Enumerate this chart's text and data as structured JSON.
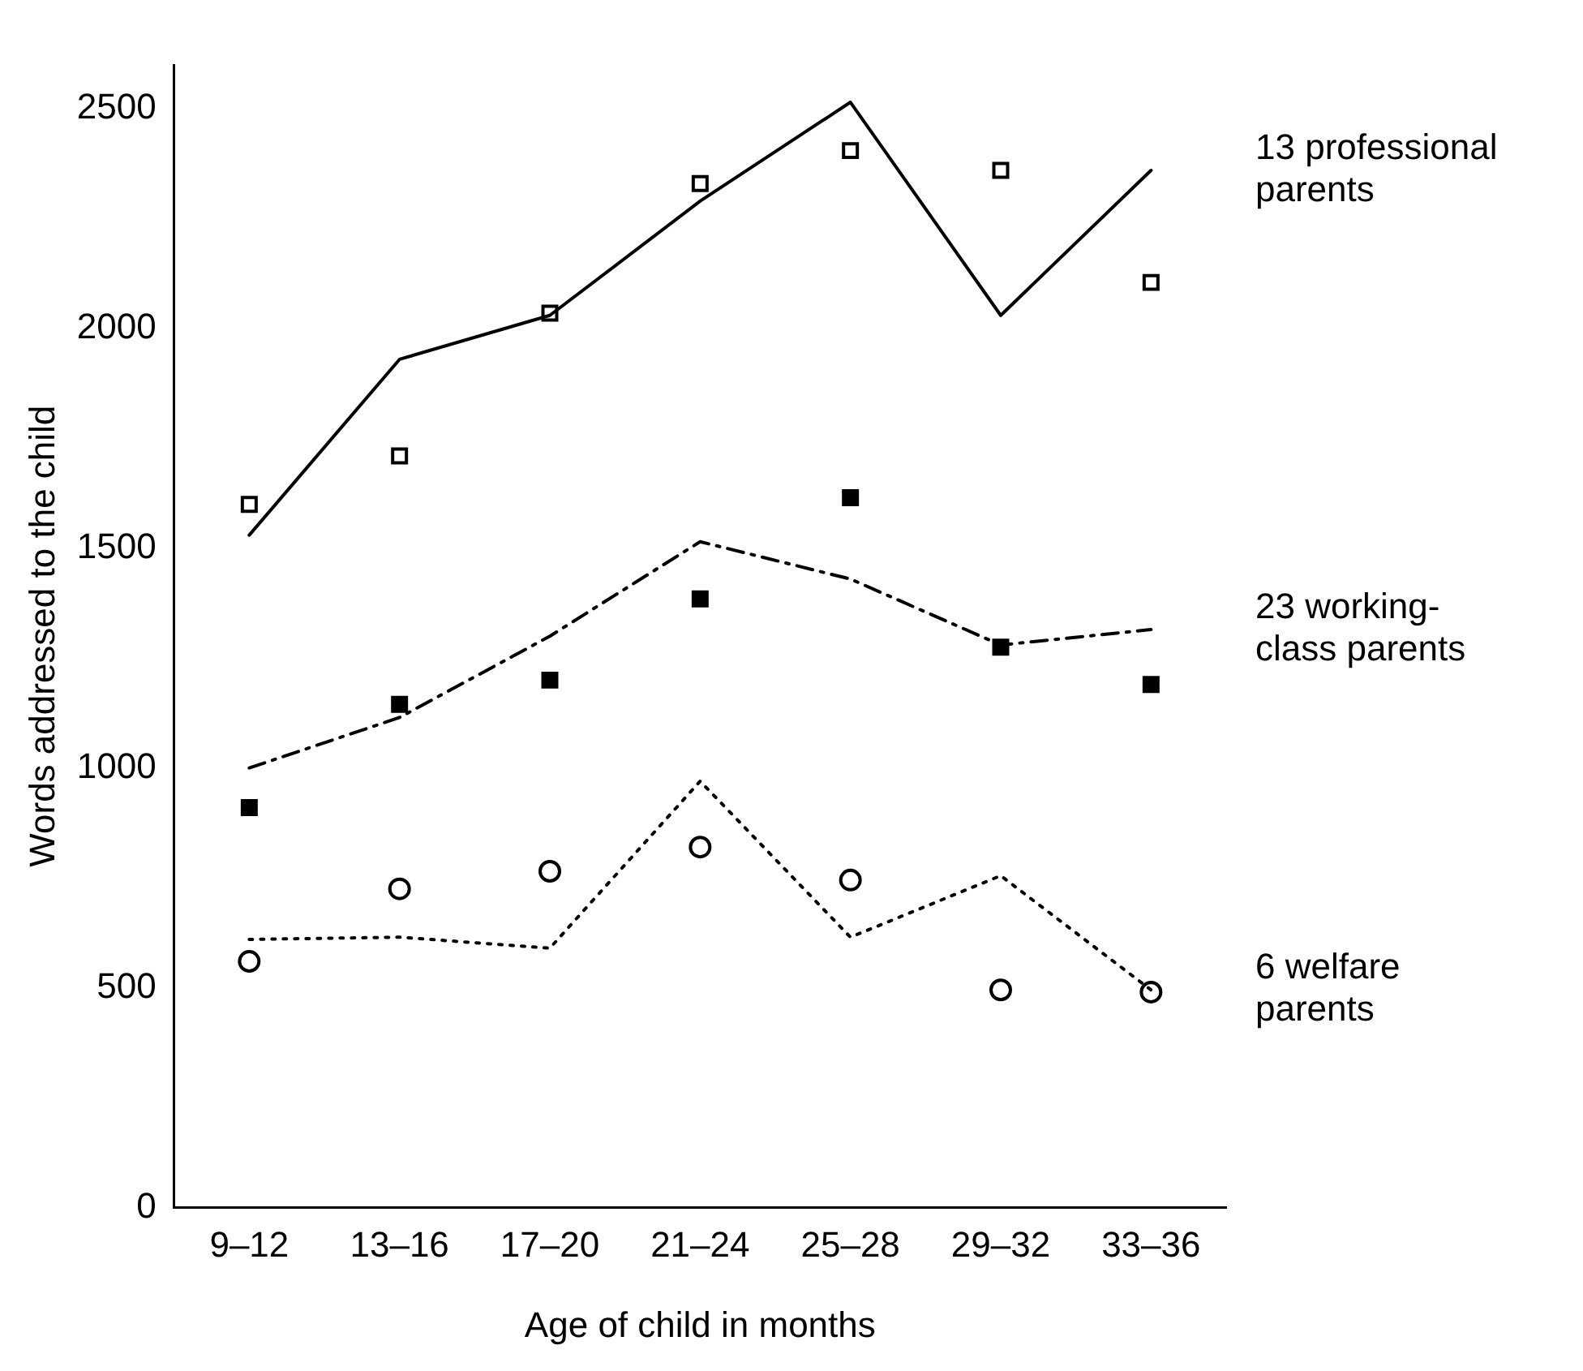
{
  "chart_data": {
    "type": "line",
    "xlabel": "Age of child in months",
    "ylabel": "Words addressed to the child",
    "categories": [
      "9–12",
      "13–16",
      "17–20",
      "21–24",
      "25–28",
      "29–32",
      "33–36"
    ],
    "ylim": [
      0,
      2600
    ],
    "yticks": [
      0,
      500,
      1000,
      1500,
      2000,
      2500
    ],
    "grid": false,
    "legend": false,
    "series": [
      {
        "name": "13 professional parents",
        "color": "#000000",
        "line_style": "solid",
        "marker": "none",
        "values": [
          1530,
          1930,
          2030,
          2290,
          2515,
          2030,
          2360
        ]
      },
      {
        "type": "scatter",
        "color": "#ffffff",
        "marker": "square",
        "values": [
          1600,
          1710,
          2035,
          2330,
          2405,
          2360,
          2105
        ]
      },
      {
        "name": "23 working-class parents",
        "color": "#000000",
        "line_style": "dashed",
        "marker": "none",
        "values": [
          1000,
          1115,
          1300,
          1515,
          1430,
          1280,
          1315
        ]
      },
      {
        "type": "scatter",
        "color": "#000000",
        "marker": "square",
        "values": [
          910,
          1145,
          1200,
          1385,
          1615,
          1275,
          1190
        ]
      },
      {
        "name": "6 welfare parents",
        "color": "#000000",
        "line_style": "dotted",
        "marker": "none",
        "values": [
          610,
          615,
          590,
          970,
          615,
          755,
          495
        ]
      },
      {
        "type": "scatter",
        "color": "#ffffff",
        "marker": "circle",
        "values": [
          560,
          725,
          765,
          820,
          745,
          495,
          490
        ]
      }
    ]
  }
}
